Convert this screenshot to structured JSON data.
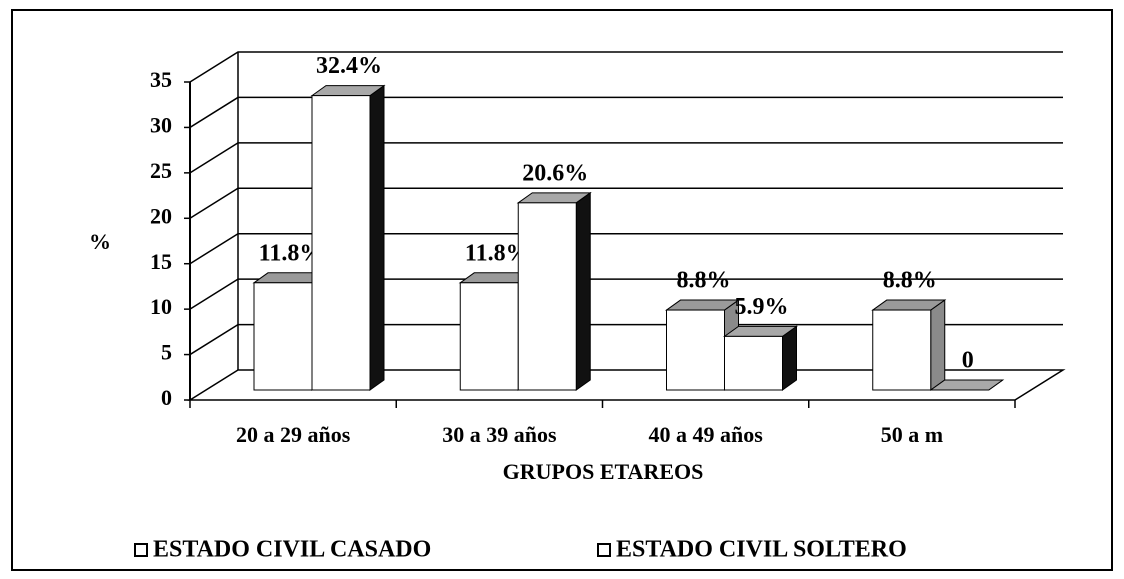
{
  "chart_data": {
    "type": "bar3d",
    "x_label": "GRUPOS ETAREOS",
    "y_label": "%",
    "categories": [
      "20 a 29 años",
      "30 a 39 años",
      "40 a 49 años",
      "50 a m"
    ],
    "series": [
      {
        "name": "ESTADO CIVIL CASADO",
        "color": "#ffffff",
        "values": [
          11.8,
          11.8,
          8.8,
          8.8
        ],
        "value_labels": [
          "11.8%",
          "11.8%",
          "8.8%",
          "8.8%"
        ]
      },
      {
        "name": "ESTADO CIVIL SOLTERO",
        "color": "#ffffff",
        "values": [
          32.4,
          20.6,
          5.9,
          0
        ],
        "value_labels": [
          "32.4%",
          "20.6%",
          "5.9%",
          "0"
        ]
      }
    ],
    "ylim": [
      0,
      35
    ],
    "yticks": [
      0,
      5,
      10,
      15,
      20,
      25,
      30,
      35
    ],
    "grid": true,
    "legend": "bottom"
  }
}
